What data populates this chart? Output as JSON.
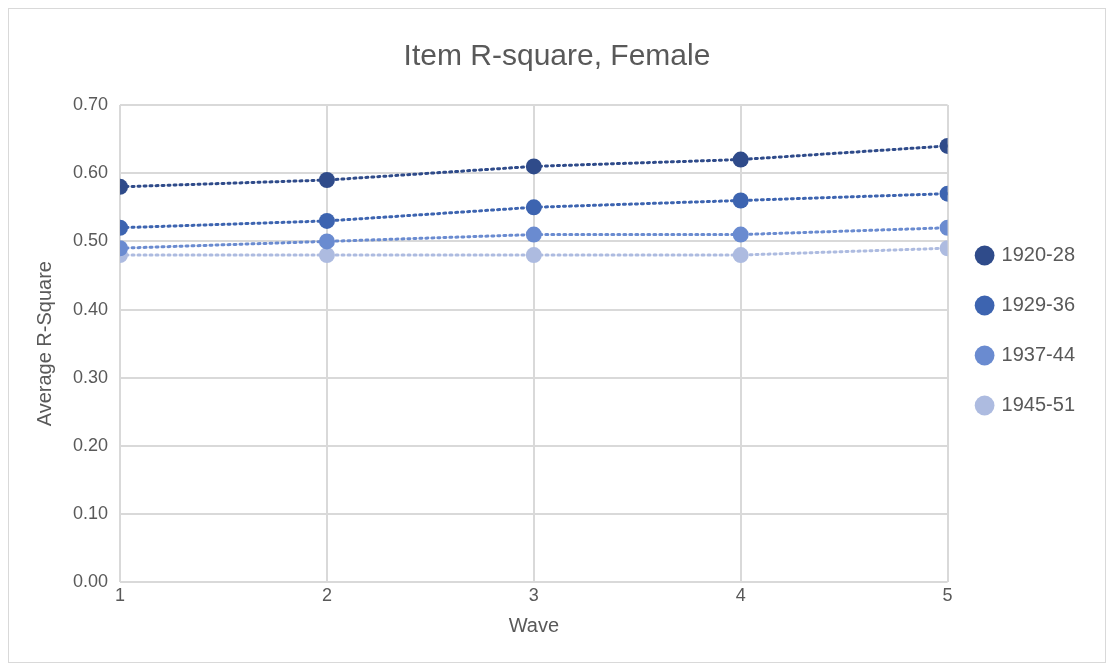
{
  "chart_data": {
    "type": "line",
    "title": "Item R-square, Female",
    "xlabel": "Wave",
    "ylabel": "Average R-Square",
    "x": [
      1,
      2,
      3,
      4,
      5
    ],
    "xlim": [
      1,
      5
    ],
    "xticks": [
      1,
      2,
      3,
      4,
      5
    ],
    "ylim": [
      0,
      0.7
    ],
    "yticks": [
      {
        "value": 0,
        "label": "0.00"
      },
      {
        "value": 0.1,
        "label": "0.10"
      },
      {
        "value": 0.2,
        "label": "0.20"
      },
      {
        "value": 0.3,
        "label": "0.30"
      },
      {
        "value": 0.4,
        "label": "0.40"
      },
      {
        "value": 0.5,
        "label": "0.50"
      },
      {
        "value": 0.6,
        "label": "0.60"
      },
      {
        "value": 0.7,
        "label": "0.70"
      }
    ],
    "series": [
      {
        "name": "1920-28",
        "color": "#2f4b8a",
        "values": [
          0.58,
          0.59,
          0.61,
          0.62,
          0.64
        ]
      },
      {
        "name": "1929-36",
        "color": "#3d64b0",
        "values": [
          0.52,
          0.53,
          0.55,
          0.56,
          0.57
        ]
      },
      {
        "name": "1937-44",
        "color": "#6a8bd0",
        "values": [
          0.49,
          0.5,
          0.51,
          0.51,
          0.52
        ]
      },
      {
        "name": "1945-51",
        "color": "#adbbe0",
        "values": [
          0.48,
          0.48,
          0.48,
          0.48,
          0.49
        ]
      }
    ],
    "grid": true,
    "legend": "right",
    "marker": "circle",
    "line_style": "dotted"
  }
}
